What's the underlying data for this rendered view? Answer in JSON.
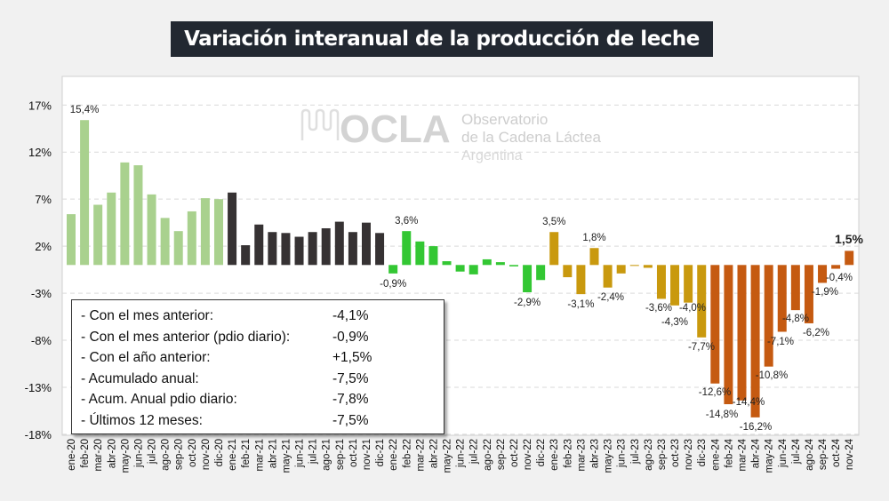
{
  "title": "Variación interanual de la producción de leche",
  "logo": {
    "mark": "OCLA",
    "line1": "Observatorio",
    "line2": "de la Cadena Láctea",
    "line3": "Argentina"
  },
  "stats": [
    {
      "label": "- Con el mes anterior:",
      "value": "-4,1%"
    },
    {
      "label": "- Con el mes anterior (pdio diario):",
      "value": "-0,9%"
    },
    {
      "label": "- Con el año anterior:",
      "value": "+1,5%"
    },
    {
      "label": "- Acumulado anual:",
      "value": "-7,5%"
    },
    {
      "label": "- Acum. Anual pdio diario:",
      "value": "-7,8%"
    },
    {
      "label": "- Últimos 12 meses:",
      "value": "-7,5%"
    }
  ],
  "chart_data": {
    "type": "bar",
    "title": "Variación interanual de la producción de leche",
    "ylim": [
      -18,
      17
    ],
    "yticks": [
      "17%",
      "12%",
      "7%",
      "2%",
      "-3%",
      "-8%",
      "-13%",
      "-18%"
    ],
    "ytick_values": [
      17,
      12,
      7,
      2,
      -3,
      -8,
      -13,
      -18
    ],
    "grid": true,
    "year_colors": {
      "2020": "#a9d18e",
      "2021": "#363233",
      "2022": "#33c733",
      "2023": "#c9990e",
      "2024": "#c55a11"
    },
    "categories": [
      "ene-20",
      "feb-20",
      "mar-20",
      "abr-20",
      "may-20",
      "jun-20",
      "jul-20",
      "ago-20",
      "sep-20",
      "oct-20",
      "nov-20",
      "dic-20",
      "ene-21",
      "feb-21",
      "mar-21",
      "abr-21",
      "may-21",
      "jun-21",
      "jul-21",
      "ago-21",
      "sep-21",
      "oct-21",
      "nov-21",
      "dic-21",
      "ene-22",
      "feb-22",
      "mar-22",
      "abr-22",
      "may-22",
      "jun-22",
      "jul-22",
      "ago-22",
      "sep-22",
      "oct-22",
      "nov-22",
      "dic-22",
      "ene-23",
      "feb-23",
      "mar-23",
      "abr-23",
      "may-23",
      "jun-23",
      "jul-23",
      "ago-23",
      "sep-23",
      "oct-23",
      "nov-23",
      "dic-23",
      "ene-24",
      "feb-24",
      "mar-24",
      "abr-24",
      "may-24",
      "jun-24",
      "jul-24",
      "ago-24",
      "sep-24",
      "oct-24",
      "nov-24"
    ],
    "values": [
      5.4,
      15.4,
      6.4,
      7.7,
      10.9,
      10.6,
      7.5,
      5.0,
      3.6,
      5.7,
      7.1,
      7.0,
      7.7,
      2.1,
      4.3,
      3.5,
      3.4,
      3.0,
      3.5,
      3.9,
      4.6,
      3.5,
      4.5,
      3.4,
      -0.9,
      3.6,
      2.5,
      2.0,
      0.4,
      -0.7,
      -1.0,
      0.6,
      0.3,
      -0.15,
      -2.9,
      -1.6,
      3.5,
      -1.3,
      -3.1,
      1.8,
      -2.4,
      -0.9,
      -0.1,
      -0.3,
      -3.6,
      -4.3,
      -4.0,
      -7.7,
      -12.6,
      -14.8,
      -14.4,
      -16.2,
      -10.8,
      -7.1,
      -4.8,
      -6.2,
      -1.9,
      -0.4,
      1.5
    ],
    "data_labels": [
      null,
      "15,4%",
      null,
      null,
      null,
      null,
      null,
      null,
      null,
      null,
      null,
      null,
      null,
      null,
      null,
      null,
      null,
      null,
      null,
      null,
      null,
      null,
      null,
      null,
      "-0,9%",
      "3,6%",
      null,
      null,
      null,
      null,
      null,
      null,
      null,
      null,
      "-2,9%",
      null,
      "3,5%",
      null,
      "-3,1%",
      "1,8%",
      "-2,4%",
      null,
      null,
      null,
      "-3,6%",
      "-4,3%",
      "-4,0%",
      "-7,7%",
      "-12,6%",
      "-14,8%",
      "-14,4%",
      "-16,2%",
      "-10,8%",
      "-7,1%",
      "-4,8%",
      "-6,2%",
      "-1,9%",
      "-0,4%",
      "1,5%"
    ]
  }
}
